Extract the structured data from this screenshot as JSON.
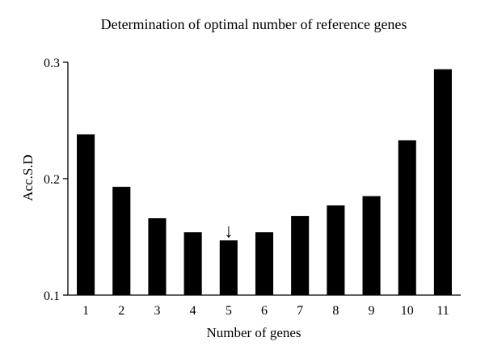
{
  "chart_data": {
    "type": "bar",
    "title": "Determination of optimal number of reference genes",
    "xlabel": "Number of genes",
    "ylabel": "Acc.S.D",
    "categories": [
      "1",
      "2",
      "3",
      "4",
      "5",
      "6",
      "7",
      "8",
      "9",
      "10",
      "11"
    ],
    "values": [
      0.238,
      0.193,
      0.166,
      0.154,
      0.147,
      0.154,
      0.168,
      0.177,
      0.185,
      0.233,
      0.294
    ],
    "ylim": [
      0.1,
      0.3
    ],
    "yticks": [
      0.1,
      0.2,
      0.3
    ],
    "ytick_labels": [
      "0.1",
      "0.2",
      "0.3"
    ],
    "bar_color": "#000000",
    "grid": false,
    "annotation": {
      "type": "arrow",
      "glyph": "↓",
      "category": "5"
    }
  }
}
